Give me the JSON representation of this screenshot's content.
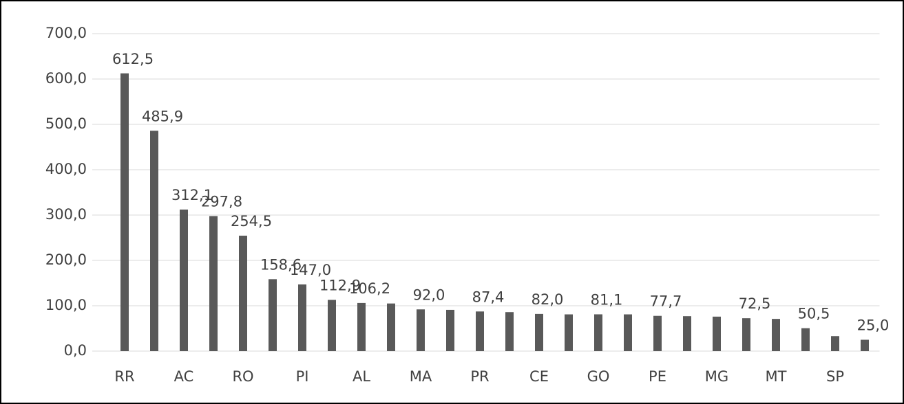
{
  "chart_data": {
    "type": "bar",
    "categories": [
      "RR",
      null,
      "AC",
      null,
      "RO",
      null,
      "PI",
      null,
      "AL",
      null,
      "MA",
      null,
      "PR",
      null,
      "CE",
      null,
      "GO",
      null,
      "PE",
      null,
      "MG",
      null,
      "MT",
      null,
      "SP",
      null
    ],
    "values": [
      612.5,
      485.9,
      312.1,
      297.8,
      254.5,
      158.6,
      147.0,
      112.9,
      106.2,
      105,
      92.0,
      91,
      87.4,
      86,
      82.0,
      81,
      81.1,
      81,
      77.7,
      77,
      76,
      72.5,
      71,
      50.5,
      33,
      25.0
    ],
    "value_labels": [
      "612,5",
      "485,9",
      "312,1",
      "297,8",
      "254,5",
      "158,6",
      "147,0",
      "112,9",
      "106,2",
      null,
      "92,0",
      null,
      "87,4",
      null,
      "82,0",
      null,
      "81,1",
      null,
      "77,7",
      null,
      null,
      "72,5",
      null,
      "50,5",
      null,
      "25,0"
    ],
    "color": "#595959",
    "ylim": [
      0,
      700
    ],
    "yticks": [
      {
        "value": 0,
        "label": "0,0"
      },
      {
        "value": 100,
        "label": "100,0"
      },
      {
        "value": 200,
        "label": "200,0"
      },
      {
        "value": 300,
        "label": "300,0"
      },
      {
        "value": 400,
        "label": "400,0"
      },
      {
        "value": 500,
        "label": "500,0"
      },
      {
        "value": 600,
        "label": "600,0"
      },
      {
        "value": 700,
        "label": "700,0"
      }
    ],
    "grid": true
  }
}
